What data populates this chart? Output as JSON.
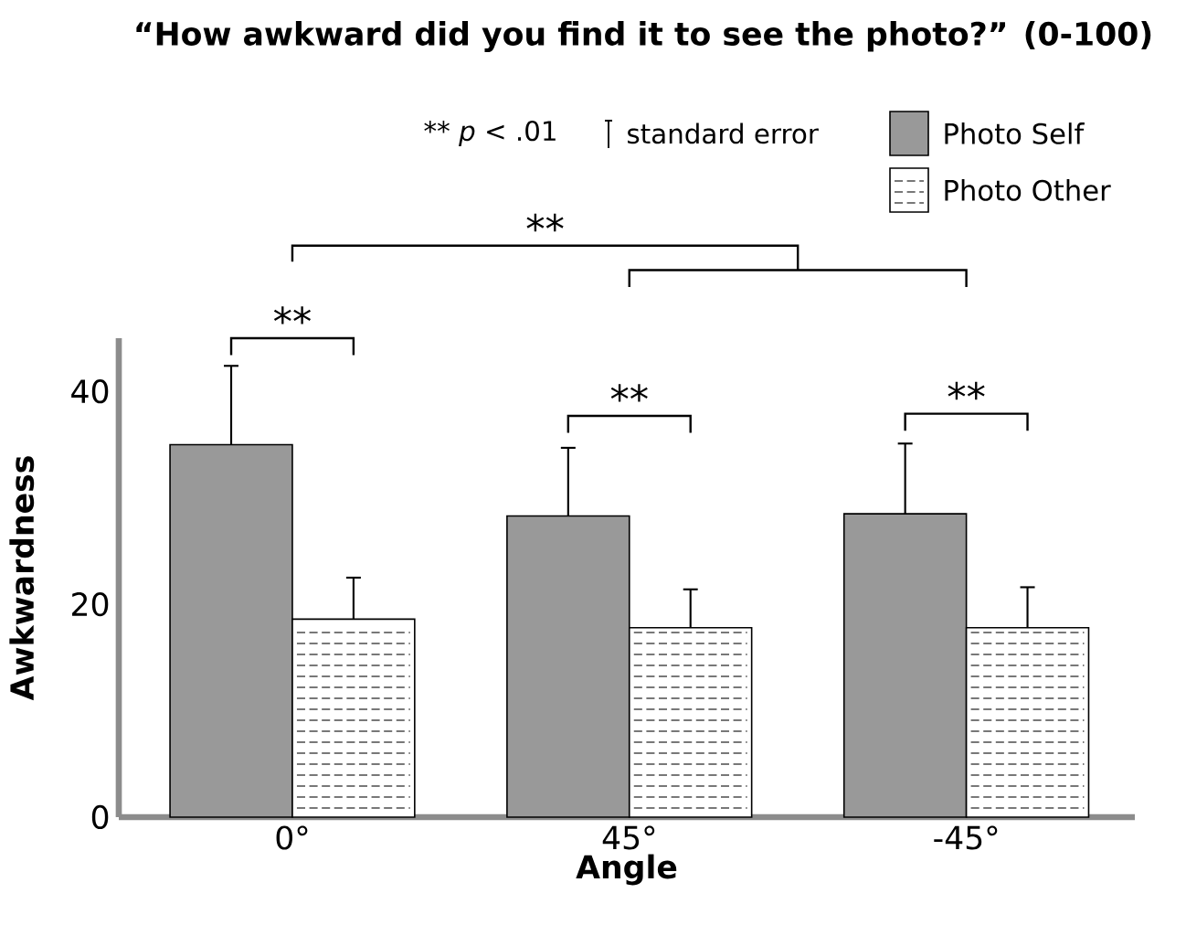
{
  "chart_data": {
    "type": "bar",
    "title": "“How awkward did you find it to see the photo?” (0-100)",
    "xlabel": "Angle",
    "ylabel": "Awkwardness",
    "categories": [
      "0°",
      "45°",
      "-45°"
    ],
    "series": [
      {
        "name": "Photo Self",
        "color": "#999999",
        "values": [
          35.0,
          28.3,
          28.5
        ],
        "errors": [
          [
            35.0,
            42.4
          ],
          [
            28.3,
            34.7
          ],
          [
            28.5,
            35.1
          ]
        ]
      },
      {
        "name": "Photo Other",
        "color": "#ffffff",
        "values": [
          18.6,
          17.8,
          17.8
        ],
        "errors": [
          [
            18.6,
            22.5
          ],
          [
            17.8,
            21.4
          ],
          [
            17.8,
            21.6
          ]
        ]
      }
    ],
    "ylim": [
      0,
      45
    ],
    "yticks": [
      0,
      20,
      40
    ],
    "legend": "top right",
    "annotations": [
      "** *p* < .01",
      "standard error",
      "**",
      "**",
      "**",
      "**"
    ]
  }
}
